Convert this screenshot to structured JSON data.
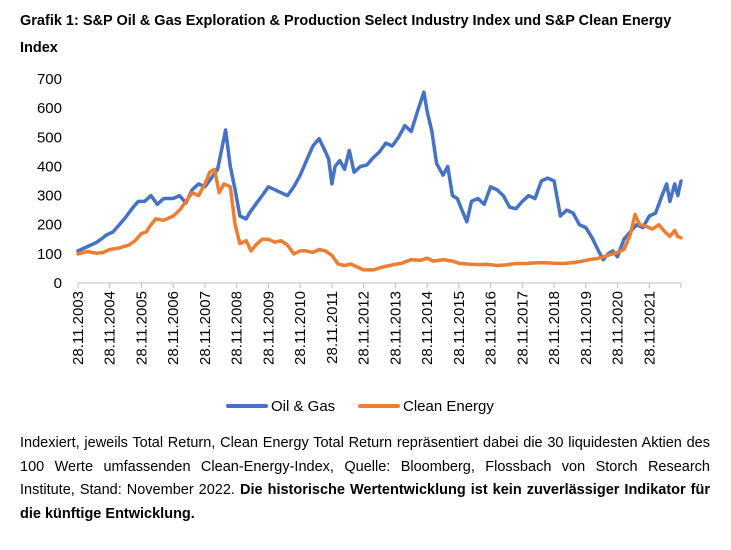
{
  "title": "Grafik 1: S&P Oil & Gas Exploration & Production Select Industry Index und S&P Clean Energy Index",
  "note": {
    "text": "Indexiert, jeweils Total Return, Clean Energy Total Return repräsentiert dabei die 30 liquides­ten Aktien des 100 Werte umfassenden Clean-Energy-Index, Quelle: Bloomberg, Flossbach von Storch Research Institute, Stand: November 2022. ",
    "bold": "Die historische Wertentwicklung ist kein zuverlässiger Indikator für die künftige Entwicklung."
  },
  "colors": {
    "oil_gas": "#4472C4",
    "clean_energy": "#ED7D31",
    "axis": "#BFBFBF"
  },
  "chart_data": {
    "type": "line",
    "ylim": [
      0,
      700
    ],
    "yticks": [
      0,
      100,
      200,
      300,
      400,
      500,
      600,
      700
    ],
    "xlim": [
      2003.9,
      2022.9
    ],
    "xticks": [
      "28.11.2003",
      "28.11.2004",
      "28.11.2005",
      "28.11.2006",
      "28.11.2007",
      "28.11.2008",
      "28.11.2009",
      "28.11.2010",
      "28.11.2011",
      "28.11.2012",
      "28.11.2013",
      "28.11.2014",
      "28.11.2015",
      "28.11.2016",
      "28.11.2017",
      "28.11.2018",
      "28.11.2019",
      "28.11.2020",
      "28.11.2021"
    ],
    "legend": "bottom",
    "series": [
      {
        "name": "Oil & Gas",
        "color": "#4472C4",
        "points": [
          [
            2003.9,
            110
          ],
          [
            2004.2,
            125
          ],
          [
            2004.5,
            140
          ],
          [
            2004.8,
            165
          ],
          [
            2005.0,
            175
          ],
          [
            2005.2,
            200
          ],
          [
            2005.4,
            225
          ],
          [
            2005.6,
            255
          ],
          [
            2005.8,
            280
          ],
          [
            2006.0,
            280
          ],
          [
            2006.2,
            300
          ],
          [
            2006.4,
            270
          ],
          [
            2006.6,
            290
          ],
          [
            2006.9,
            290
          ],
          [
            2007.1,
            300
          ],
          [
            2007.3,
            275
          ],
          [
            2007.5,
            320
          ],
          [
            2007.7,
            340
          ],
          [
            2007.9,
            330
          ],
          [
            2008.1,
            360
          ],
          [
            2008.3,
            390
          ],
          [
            2008.55,
            525
          ],
          [
            2008.7,
            400
          ],
          [
            2008.85,
            320
          ],
          [
            2009.0,
            230
          ],
          [
            2009.2,
            220
          ],
          [
            2009.3,
            240
          ],
          [
            2009.5,
            270
          ],
          [
            2009.7,
            300
          ],
          [
            2009.9,
            330
          ],
          [
            2010.1,
            320
          ],
          [
            2010.3,
            310
          ],
          [
            2010.5,
            300
          ],
          [
            2010.7,
            330
          ],
          [
            2010.9,
            370
          ],
          [
            2011.1,
            420
          ],
          [
            2011.3,
            470
          ],
          [
            2011.5,
            495
          ],
          [
            2011.7,
            450
          ],
          [
            2011.8,
            425
          ],
          [
            2011.9,
            340
          ],
          [
            2012.0,
            400
          ],
          [
            2012.15,
            420
          ],
          [
            2012.3,
            390
          ],
          [
            2012.45,
            455
          ],
          [
            2012.6,
            380
          ],
          [
            2012.8,
            400
          ],
          [
            2013.0,
            405
          ],
          [
            2013.2,
            430
          ],
          [
            2013.4,
            450
          ],
          [
            2013.6,
            480
          ],
          [
            2013.8,
            470
          ],
          [
            2014.0,
            500
          ],
          [
            2014.2,
            540
          ],
          [
            2014.4,
            520
          ],
          [
            2014.6,
            590
          ],
          [
            2014.8,
            655
          ],
          [
            2014.9,
            590
          ],
          [
            2015.05,
            520
          ],
          [
            2015.2,
            410
          ],
          [
            2015.4,
            370
          ],
          [
            2015.55,
            400
          ],
          [
            2015.7,
            300
          ],
          [
            2015.85,
            290
          ],
          [
            2016.0,
            250
          ],
          [
            2016.15,
            210
          ],
          [
            2016.3,
            280
          ],
          [
            2016.5,
            290
          ],
          [
            2016.7,
            270
          ],
          [
            2016.9,
            330
          ],
          [
            2017.1,
            320
          ],
          [
            2017.3,
            300
          ],
          [
            2017.5,
            260
          ],
          [
            2017.7,
            255
          ],
          [
            2017.9,
            280
          ],
          [
            2018.1,
            300
          ],
          [
            2018.3,
            290
          ],
          [
            2018.5,
            350
          ],
          [
            2018.7,
            360
          ],
          [
            2018.9,
            350
          ],
          [
            2019.1,
            230
          ],
          [
            2019.3,
            250
          ],
          [
            2019.5,
            240
          ],
          [
            2019.7,
            200
          ],
          [
            2019.9,
            190
          ],
          [
            2020.1,
            155
          ],
          [
            2020.3,
            110
          ],
          [
            2020.45,
            80
          ],
          [
            2020.6,
            100
          ],
          [
            2020.75,
            110
          ],
          [
            2020.9,
            90
          ],
          [
            2021.1,
            150
          ],
          [
            2021.3,
            175
          ],
          [
            2021.5,
            200
          ],
          [
            2021.7,
            190
          ],
          [
            2021.9,
            230
          ],
          [
            2022.1,
            240
          ],
          [
            2022.3,
            300
          ],
          [
            2022.45,
            340
          ],
          [
            2022.55,
            280
          ],
          [
            2022.7,
            340
          ],
          [
            2022.8,
            300
          ],
          [
            2022.9,
            350
          ]
        ]
      },
      {
        "name": "Clean Energy",
        "color": "#ED7D31",
        "points": [
          [
            2003.9,
            100
          ],
          [
            2004.2,
            108
          ],
          [
            2004.5,
            102
          ],
          [
            2004.7,
            105
          ],
          [
            2004.9,
            115
          ],
          [
            2005.2,
            120
          ],
          [
            2005.5,
            130
          ],
          [
            2005.7,
            145
          ],
          [
            2005.9,
            170
          ],
          [
            2006.05,
            175
          ],
          [
            2006.2,
            200
          ],
          [
            2006.35,
            220
          ],
          [
            2006.6,
            215
          ],
          [
            2006.9,
            230
          ],
          [
            2007.1,
            250
          ],
          [
            2007.3,
            280
          ],
          [
            2007.5,
            310
          ],
          [
            2007.7,
            300
          ],
          [
            2007.9,
            340
          ],
          [
            2008.05,
            380
          ],
          [
            2008.2,
            390
          ],
          [
            2008.35,
            310
          ],
          [
            2008.5,
            340
          ],
          [
            2008.7,
            330
          ],
          [
            2008.85,
            200
          ],
          [
            2009.0,
            135
          ],
          [
            2009.2,
            145
          ],
          [
            2009.35,
            110
          ],
          [
            2009.5,
            130
          ],
          [
            2009.7,
            150
          ],
          [
            2009.9,
            150
          ],
          [
            2010.1,
            140
          ],
          [
            2010.3,
            145
          ],
          [
            2010.5,
            130
          ],
          [
            2010.7,
            100
          ],
          [
            2010.9,
            110
          ],
          [
            2011.1,
            110
          ],
          [
            2011.3,
            105
          ],
          [
            2011.5,
            115
          ],
          [
            2011.7,
            110
          ],
          [
            2011.9,
            95
          ],
          [
            2012.1,
            65
          ],
          [
            2012.3,
            60
          ],
          [
            2012.5,
            65
          ],
          [
            2012.7,
            55
          ],
          [
            2012.9,
            45
          ],
          [
            2013.2,
            45
          ],
          [
            2013.5,
            55
          ],
          [
            2013.8,
            62
          ],
          [
            2014.1,
            68
          ],
          [
            2014.4,
            80
          ],
          [
            2014.7,
            78
          ],
          [
            2014.9,
            85
          ],
          [
            2015.1,
            75
          ],
          [
            2015.4,
            80
          ],
          [
            2015.7,
            75
          ],
          [
            2015.9,
            68
          ],
          [
            2016.2,
            65
          ],
          [
            2016.5,
            63
          ],
          [
            2016.8,
            64
          ],
          [
            2017.1,
            60
          ],
          [
            2017.4,
            62
          ],
          [
            2017.7,
            67
          ],
          [
            2018.0,
            67
          ],
          [
            2018.3,
            69
          ],
          [
            2018.6,
            70
          ],
          [
            2018.9,
            68
          ],
          [
            2019.2,
            67
          ],
          [
            2019.5,
            70
          ],
          [
            2019.8,
            75
          ],
          [
            2020.0,
            80
          ],
          [
            2020.3,
            85
          ],
          [
            2020.6,
            95
          ],
          [
            2020.9,
            105
          ],
          [
            2021.1,
            115
          ],
          [
            2021.3,
            165
          ],
          [
            2021.45,
            235
          ],
          [
            2021.6,
            200
          ],
          [
            2021.8,
            195
          ],
          [
            2022.0,
            185
          ],
          [
            2022.2,
            200
          ],
          [
            2022.4,
            175
          ],
          [
            2022.55,
            160
          ],
          [
            2022.7,
            180
          ],
          [
            2022.8,
            160
          ],
          [
            2022.9,
            155
          ]
        ]
      }
    ]
  }
}
